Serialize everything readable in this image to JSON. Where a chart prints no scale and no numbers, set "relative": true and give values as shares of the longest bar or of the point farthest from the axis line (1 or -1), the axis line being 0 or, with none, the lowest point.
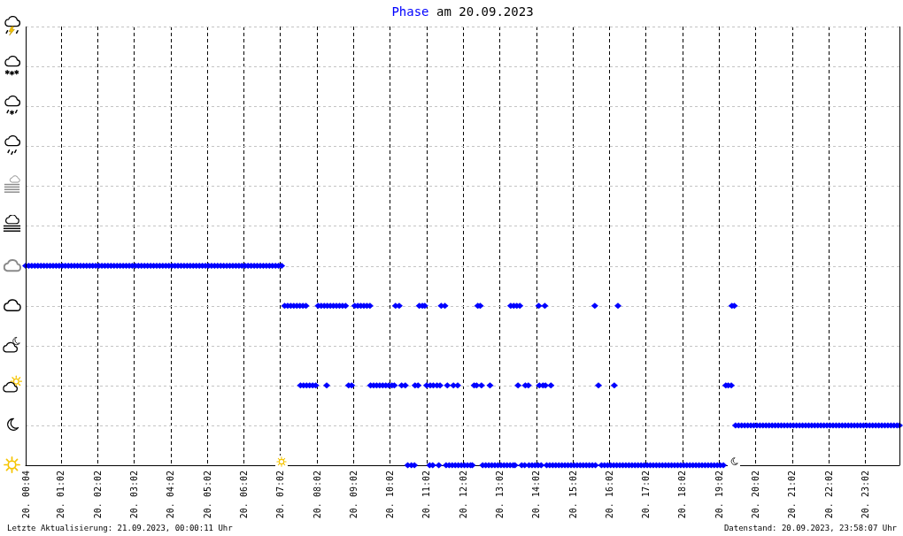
{
  "chart_data": {
    "type": "scatter",
    "title": "Phase am 20.09.2023",
    "relative": true,
    "color": "#0000ff",
    "xlim": [
      "2023-09-20T00:04",
      "2023-09-20T23:58"
    ],
    "xticks": [
      {
        "value": "2023-09-20T00:04",
        "label": "20. 00:04"
      },
      {
        "value": "2023-09-20T01:02",
        "label": "20. 01:02"
      },
      {
        "value": "2023-09-20T02:02",
        "label": "20. 02:02"
      },
      {
        "value": "2023-09-20T03:02",
        "label": "20. 03:02"
      },
      {
        "value": "2023-09-20T04:02",
        "label": "20. 04:02"
      },
      {
        "value": "2023-09-20T05:02",
        "label": "20. 05:02"
      },
      {
        "value": "2023-09-20T06:02",
        "label": "20. 06:02"
      },
      {
        "value": "2023-09-20T07:02",
        "label": "20. 07:02"
      },
      {
        "value": "2023-09-20T08:02",
        "label": "20. 08:02"
      },
      {
        "value": "2023-09-20T09:02",
        "label": "20. 09:02"
      },
      {
        "value": "2023-09-20T10:02",
        "label": "20. 10:02"
      },
      {
        "value": "2023-09-20T11:02",
        "label": "20. 11:02"
      },
      {
        "value": "2023-09-20T12:02",
        "label": "20. 12:02"
      },
      {
        "value": "2023-09-20T13:02",
        "label": "20. 13:02"
      },
      {
        "value": "2023-09-20T14:02",
        "label": "20. 14:02"
      },
      {
        "value": "2023-09-20T15:02",
        "label": "20. 15:02"
      },
      {
        "value": "2023-09-20T16:02",
        "label": "20. 16:02"
      },
      {
        "value": "2023-09-20T17:02",
        "label": "20. 17:02"
      },
      {
        "value": "2023-09-20T18:02",
        "label": "20. 18:02"
      },
      {
        "value": "2023-09-20T19:02",
        "label": "20. 19:02"
      },
      {
        "value": "2023-09-20T20:02",
        "label": "20. 20:02"
      },
      {
        "value": "2023-09-20T21:02",
        "label": "20. 21:02"
      },
      {
        "value": "2023-09-20T22:02",
        "label": "20. 22:02"
      },
      {
        "value": "2023-09-20T23:02",
        "label": "20. 23:02"
      }
    ],
    "tick_labels": "x",
    "grid": true,
    "marker": "diamond",
    "x": [
      "2023-09-20T00:04",
      "2023-09-20T00:09",
      "2023-09-20T00:14",
      "2023-09-20T00:19",
      "2023-09-20T00:24",
      "2023-09-20T00:29",
      "2023-09-20T00:34",
      "2023-09-20T00:39",
      "2023-09-20T00:44",
      "2023-09-20T00:49",
      "2023-09-20T00:54",
      "2023-09-20T00:59",
      "2023-09-20T01:04",
      "2023-09-20T01:09",
      "2023-09-20T01:14",
      "2023-09-20T01:19",
      "2023-09-20T01:24",
      "2023-09-20T01:29",
      "2023-09-20T01:34",
      "2023-09-20T01:39",
      "2023-09-20T01:44",
      "2023-09-20T01:49",
      "2023-09-20T01:54",
      "2023-09-20T01:59",
      "2023-09-20T02:04",
      "2023-09-20T02:09",
      "2023-09-20T02:14",
      "2023-09-20T02:19",
      "2023-09-20T02:24",
      "2023-09-20T02:29",
      "2023-09-20T02:34",
      "2023-09-20T02:39",
      "2023-09-20T02:44",
      "2023-09-20T02:49",
      "2023-09-20T02:54",
      "2023-09-20T02:59",
      "2023-09-20T03:04",
      "2023-09-20T03:09",
      "2023-09-20T03:14",
      "2023-09-20T03:19",
      "2023-09-20T03:24",
      "2023-09-20T03:29",
      "2023-09-20T03:34",
      "2023-09-20T03:39",
      "2023-09-20T03:44",
      "2023-09-20T03:49",
      "2023-09-20T03:54",
      "2023-09-20T03:59",
      "2023-09-20T04:04",
      "2023-09-20T04:09",
      "2023-09-20T04:14",
      "2023-09-20T04:19",
      "2023-09-20T04:24",
      "2023-09-20T04:29",
      "2023-09-20T04:34",
      "2023-09-20T04:39",
      "2023-09-20T04:44",
      "2023-09-20T04:49",
      "2023-09-20T04:54",
      "2023-09-20T04:59",
      "2023-09-20T05:04",
      "2023-09-20T05:09",
      "2023-09-20T05:14",
      "2023-09-20T05:19",
      "2023-09-20T05:24",
      "2023-09-20T05:29",
      "2023-09-20T05:34",
      "2023-09-20T05:39",
      "2023-09-20T05:44",
      "2023-09-20T05:49",
      "2023-09-20T05:54",
      "2023-09-20T05:59",
      "2023-09-20T06:04",
      "2023-09-20T06:09",
      "2023-09-20T06:14",
      "2023-09-20T06:19",
      "2023-09-20T06:24",
      "2023-09-20T06:29",
      "2023-09-20T06:34",
      "2023-09-20T06:39",
      "2023-09-20T06:44",
      "2023-09-20T06:49",
      "2023-09-20T06:54",
      "2023-09-20T06:59",
      "2023-09-20T07:04",
      "2023-09-20T07:09",
      "2023-09-20T07:14",
      "2023-09-20T07:19",
      "2023-09-20T07:24",
      "2023-09-20T07:29",
      "2023-09-20T07:34",
      "2023-09-20T07:35",
      "2023-09-20T07:39",
      "2023-09-20T07:40",
      "2023-09-20T07:44",
      "2023-09-20T07:45",
      "2023-09-20T07:50",
      "2023-09-20T07:55",
      "2023-09-20T08:00",
      "2023-09-20T08:04",
      "2023-09-20T08:09",
      "2023-09-20T08:14",
      "2023-09-20T08:18",
      "2023-09-20T08:19",
      "2023-09-20T08:24",
      "2023-09-20T08:29",
      "2023-09-20T08:34",
      "2023-09-20T08:39",
      "2023-09-20T08:44",
      "2023-09-20T08:49",
      "2023-09-20T08:54",
      "2023-09-20T08:59",
      "2023-09-20T09:04",
      "2023-09-20T09:09",
      "2023-09-20T09:14",
      "2023-09-20T09:19",
      "2023-09-20T09:24",
      "2023-09-20T09:29",
      "2023-09-20T09:30",
      "2023-09-20T09:35",
      "2023-09-20T09:40",
      "2023-09-20T09:45",
      "2023-09-20T09:50",
      "2023-09-20T09:55",
      "2023-09-20T10:00",
      "2023-09-20T10:05",
      "2023-09-20T10:09",
      "2023-09-20T10:11",
      "2023-09-20T10:17",
      "2023-09-20T10:21",
      "2023-09-20T10:27",
      "2023-09-20T10:31",
      "2023-09-20T10:37",
      "2023-09-20T10:42",
      "2023-09-20T10:43",
      "2023-09-20T10:48",
      "2023-09-20T10:50",
      "2023-09-20T10:55",
      "2023-09-20T10:59",
      "2023-09-20T11:02",
      "2023-09-20T11:07",
      "2023-09-20T11:08",
      "2023-09-20T11:12",
      "2023-09-20T11:13",
      "2023-09-20T11:19",
      "2023-09-20T11:22",
      "2023-09-20T11:24",
      "2023-09-20T11:26",
      "2023-09-20T11:32",
      "2023-09-20T11:34",
      "2023-09-20T11:36",
      "2023-09-20T11:39",
      "2023-09-20T11:44",
      "2023-09-20T11:46",
      "2023-09-20T11:49",
      "2023-09-20T11:53",
      "2023-09-20T11:54",
      "2023-09-20T11:59",
      "2023-09-20T12:04",
      "2023-09-20T12:09",
      "2023-09-20T12:14",
      "2023-09-20T12:17",
      "2023-09-20T12:20",
      "2023-09-20T12:24",
      "2023-09-20T12:26",
      "2023-09-20T12:30",
      "2023-09-20T12:32",
      "2023-09-20T12:34",
      "2023-09-20T12:39",
      "2023-09-20T12:44",
      "2023-09-20T12:46",
      "2023-09-20T12:49",
      "2023-09-20T12:54",
      "2023-09-20T12:59",
      "2023-09-20T13:04",
      "2023-09-20T13:09",
      "2023-09-20T13:14",
      "2023-09-20T13:19",
      "2023-09-20T13:20",
      "2023-09-20T13:24",
      "2023-09-20T13:25",
      "2023-09-20T13:27",
      "2023-09-20T13:30",
      "2023-09-20T13:32",
      "2023-09-20T13:35",
      "2023-09-20T13:38",
      "2023-09-20T13:43",
      "2023-09-20T13:44",
      "2023-09-20T13:49",
      "2023-09-20T13:50",
      "2023-09-20T13:55",
      "2023-09-20T14:00",
      "2023-09-20T14:05",
      "2023-09-20T14:06",
      "2023-09-20T14:07",
      "2023-09-20T14:10",
      "2023-09-20T14:13",
      "2023-09-20T14:16",
      "2023-09-20T14:17",
      "2023-09-20T14:19",
      "2023-09-20T14:24",
      "2023-09-20T14:26",
      "2023-09-20T14:29",
      "2023-09-20T14:34",
      "2023-09-20T14:39",
      "2023-09-20T14:44",
      "2023-09-20T14:49",
      "2023-09-20T14:54",
      "2023-09-20T14:59",
      "2023-09-20T15:04",
      "2023-09-20T15:09",
      "2023-09-20T15:14",
      "2023-09-20T15:19",
      "2023-09-20T15:24",
      "2023-09-20T15:29",
      "2023-09-20T15:34",
      "2023-09-20T15:38",
      "2023-09-20T15:39",
      "2023-09-20T15:44",
      "2023-09-20T15:49",
      "2023-09-20T15:54",
      "2023-09-20T15:59",
      "2023-09-20T16:04",
      "2023-09-20T16:09",
      "2023-09-20T16:10",
      "2023-09-20T16:14",
      "2023-09-20T16:16",
      "2023-09-20T16:19",
      "2023-09-20T16:24",
      "2023-09-20T16:29",
      "2023-09-20T16:34",
      "2023-09-20T16:39",
      "2023-09-20T16:44",
      "2023-09-20T16:49",
      "2023-09-20T16:54",
      "2023-09-20T16:59",
      "2023-09-20T17:04",
      "2023-09-20T17:09",
      "2023-09-20T17:14",
      "2023-09-20T17:19",
      "2023-09-20T17:24",
      "2023-09-20T17:29",
      "2023-09-20T17:34",
      "2023-09-20T17:39",
      "2023-09-20T17:44",
      "2023-09-20T17:49",
      "2023-09-20T17:54",
      "2023-09-20T17:59",
      "2023-09-20T18:04",
      "2023-09-20T18:09",
      "2023-09-20T18:14",
      "2023-09-20T18:19",
      "2023-09-20T18:24",
      "2023-09-20T18:29",
      "2023-09-20T18:34",
      "2023-09-20T18:39",
      "2023-09-20T18:44",
      "2023-09-20T18:49",
      "2023-09-20T18:54",
      "2023-09-20T18:59",
      "2023-09-20T19:04",
      "2023-09-20T19:09",
      "2023-09-20T19:13",
      "2023-09-20T19:17",
      "2023-09-20T19:22",
      "2023-09-20T19:23",
      "2023-09-20T19:27",
      "2023-09-20T19:29",
      "2023-09-20T19:34",
      "2023-09-20T19:39",
      "2023-09-20T19:44",
      "2023-09-20T19:49",
      "2023-09-20T19:54",
      "2023-09-20T19:59",
      "2023-09-20T20:04",
      "2023-09-20T20:09",
      "2023-09-20T20:14",
      "2023-09-20T20:19",
      "2023-09-20T20:24",
      "2023-09-20T20:29",
      "2023-09-20T20:34",
      "2023-09-20T20:39",
      "2023-09-20T20:44",
      "2023-09-20T20:49",
      "2023-09-20T20:54",
      "2023-09-20T20:59",
      "2023-09-20T21:04",
      "2023-09-20T21:09",
      "2023-09-20T21:14",
      "2023-09-20T21:19",
      "2023-09-20T21:24",
      "2023-09-20T21:29",
      "2023-09-20T21:34",
      "2023-09-20T21:39",
      "2023-09-20T21:44",
      "2023-09-20T21:49",
      "2023-09-20T21:54",
      "2023-09-20T21:59",
      "2023-09-20T22:04",
      "2023-09-20T22:09",
      "2023-09-20T22:14",
      "2023-09-20T22:19",
      "2023-09-20T22:24",
      "2023-09-20T22:29",
      "2023-09-20T22:34",
      "2023-09-20T22:39",
      "2023-09-20T22:44",
      "2023-09-20T22:49",
      "2023-09-20T22:54",
      "2023-09-20T22:59",
      "2023-09-20T23:04",
      "2023-09-20T23:09",
      "2023-09-20T23:14",
      "2023-09-20T23:19",
      "2023-09-20T23:24",
      "2023-09-20T23:29",
      "2023-09-20T23:34",
      "2023-09-20T23:39",
      "2023-09-20T23:44",
      "2023-09-20T23:49",
      "2023-09-20T23:54",
      "2023-09-20T23:58"
    ],
    "values": [
      1,
      1,
      1,
      1,
      1,
      1,
      1,
      1,
      1,
      1,
      1,
      1,
      1,
      1,
      1,
      1,
      1,
      1,
      1,
      1,
      1,
      1,
      1,
      1,
      1,
      1,
      1,
      1,
      1,
      1,
      1,
      1,
      1,
      1,
      1,
      1,
      1,
      1,
      1,
      1,
      1,
      1,
      1,
      1,
      1,
      1,
      1,
      1,
      1,
      1,
      1,
      1,
      1,
      1,
      1,
      1,
      1,
      1,
      1,
      1,
      1,
      1,
      1,
      1,
      1,
      1,
      1,
      1,
      1,
      1,
      1,
      1,
      1,
      1,
      1,
      1,
      1,
      1,
      1,
      1,
      1,
      1,
      1,
      1,
      1,
      0.8,
      0.8,
      0.8,
      0.8,
      0.8,
      0.8,
      0.4,
      0.8,
      0.4,
      0.8,
      0.4,
      0.4,
      0.4,
      0.4,
      0.8,
      0.8,
      0.8,
      0.4,
      0.8,
      0.8,
      0.8,
      0.8,
      0.8,
      0.8,
      0.8,
      0.4,
      0.4,
      0.8,
      0.8,
      0.8,
      0.8,
      0.8,
      0.8,
      0.4,
      0.4,
      0.4,
      0.4,
      0.4,
      0.4,
      0.4,
      0.4,
      0.4,
      0.8,
      0.8,
      0.4,
      0.4,
      0,
      0,
      0,
      0.4,
      0.4,
      0.8,
      0.8,
      0.8,
      0.4,
      0,
      0.4,
      0,
      0.4,
      0.4,
      0,
      0.4,
      0.8,
      0.8,
      0,
      0.4,
      0,
      0,
      0.4,
      0,
      0.4,
      0,
      0,
      0,
      0,
      0,
      0,
      0.4,
      0.4,
      0.8,
      0.8,
      0.4,
      0,
      0,
      0,
      0.4,
      0,
      0,
      0,
      0,
      0,
      0,
      0,
      0.8,
      0,
      0.8,
      0,
      0.8,
      0.4,
      0.8,
      0,
      0,
      0.4,
      0.4,
      0,
      0,
      0,
      0,
      0.8,
      0.4,
      0,
      0.4,
      0.8,
      0.4,
      0,
      0,
      0.4,
      0,
      0,
      0,
      0,
      0,
      0,
      0,
      0,
      0,
      0,
      0,
      0,
      0,
      0,
      0.8,
      0,
      0.4,
      0,
      0,
      0,
      0,
      0,
      0.4,
      0,
      0.8,
      0,
      0,
      0,
      0,
      0,
      0,
      0,
      0,
      0,
      0,
      0,
      0,
      0,
      0,
      0,
      0,
      0,
      0,
      0,
      0,
      0,
      0,
      0,
      0,
      0,
      0,
      0,
      0,
      0,
      0,
      0,
      0,
      0,
      0,
      0,
      0.4,
      0.4,
      0.4,
      0.8,
      0.8,
      0.2,
      0.2,
      0.2,
      0.2,
      0.2,
      0.2,
      0.2,
      0.2,
      0.2,
      0.2,
      0.2,
      0.2,
      0.2,
      0.2,
      0.2,
      0.2,
      0.2,
      0.2,
      0.2,
      0.2,
      0.2,
      0.2,
      0.2,
      0.2,
      0.2,
      0.2,
      0.2,
      0.2,
      0.2,
      0.2,
      0.2,
      0.2,
      0.2,
      0.2,
      0.2,
      0.2,
      0.2,
      0.2,
      0.2,
      0.2,
      0.2,
      0.2,
      0.2,
      0.2,
      0.2,
      0.2,
      0.2,
      0.2,
      0.2,
      0.2,
      0.2,
      0.2,
      0.2,
      0.2,
      0.2
    ],
    "annotations": [
      "Letzte Aktualisierung: 21.09.2023, 00:00:11 Uhr",
      "Datenstand: 20.09.2023, 23:58:07 Uhr"
    ]
  }
}
